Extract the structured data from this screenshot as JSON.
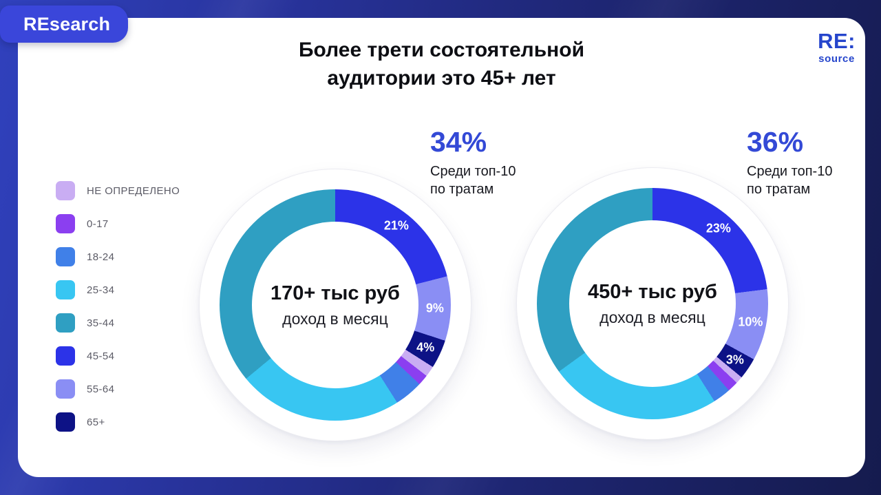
{
  "accent": "#3349d6",
  "badge": {
    "label": "REsearch",
    "color": "#3a46da"
  },
  "logo": {
    "primary": "RE:",
    "secondary": "source",
    "color": "#2545cc"
  },
  "title": {
    "line1": "Более трети состоятельной",
    "line2": "аудитории это 45+ лет"
  },
  "legend": {
    "items": [
      {
        "label": "НЕ ОПРЕДЕЛЕНО",
        "color": "#c9adf3"
      },
      {
        "label": "0-17",
        "color": "#8b3ff0"
      },
      {
        "label": "18-24",
        "color": "#4080e8"
      },
      {
        "label": "25-34",
        "color": "#38c6f2"
      },
      {
        "label": "35-44",
        "color": "#2f9fc2"
      },
      {
        "label": "45-54",
        "color": "#2c33e8"
      },
      {
        "label": "55-64",
        "color": "#8a8ef4"
      },
      {
        "label": "65+",
        "color": "#0d1286"
      }
    ]
  },
  "chart_data": [
    {
      "type": "pie",
      "variant": "donut",
      "center_title": "170+ тыс руб",
      "center_subtitle": "доход в месяц",
      "callout": {
        "value": "34%",
        "caption_line1": "Среди топ-10",
        "caption_line2": "по тратам"
      },
      "start_angle_deg": 0,
      "direction": "clockwise",
      "legend_position": "left",
      "segments": [
        {
          "label": "45-54",
          "value": 21,
          "display": "21%",
          "color": "#2c33e8"
        },
        {
          "label": "55-64",
          "value": 9,
          "display": "9%",
          "color": "#8a8ef4"
        },
        {
          "label": "65+",
          "value": 4,
          "display": "4%",
          "color": "#0d1286"
        },
        {
          "label": "НЕ ОПРЕДЕЛЕНО",
          "value": 1.5,
          "color": "#c9adf3"
        },
        {
          "label": "0-17",
          "value": 1.5,
          "color": "#8b3ff0"
        },
        {
          "label": "18-24",
          "value": 4,
          "color": "#4080e8"
        },
        {
          "label": "25-34",
          "value": 23,
          "color": "#38c6f2"
        },
        {
          "label": "35-44",
          "value": 36,
          "color": "#2f9fc2"
        }
      ]
    },
    {
      "type": "pie",
      "variant": "donut",
      "center_title": "450+ тыс руб",
      "center_subtitle": "доход в месяц",
      "callout": {
        "value": "36%",
        "caption_line1": "Среди топ-10",
        "caption_line2": "по тратам"
      },
      "start_angle_deg": 0,
      "direction": "clockwise",
      "legend_position": "left",
      "segments": [
        {
          "label": "45-54",
          "value": 23,
          "display": "23%",
          "color": "#2c33e8"
        },
        {
          "label": "55-64",
          "value": 10,
          "display": "10%",
          "color": "#8a8ef4"
        },
        {
          "label": "65+",
          "value": 3,
          "display": "3%",
          "color": "#0d1286"
        },
        {
          "label": "НЕ ОПРЕДЕЛЕНО",
          "value": 1,
          "color": "#c9adf3"
        },
        {
          "label": "0-17",
          "value": 1.5,
          "color": "#8b3ff0"
        },
        {
          "label": "18-24",
          "value": 2.5,
          "color": "#4080e8"
        },
        {
          "label": "25-34",
          "value": 24,
          "color": "#38c6f2"
        },
        {
          "label": "35-44",
          "value": 35,
          "color": "#2f9fc2"
        }
      ]
    }
  ]
}
